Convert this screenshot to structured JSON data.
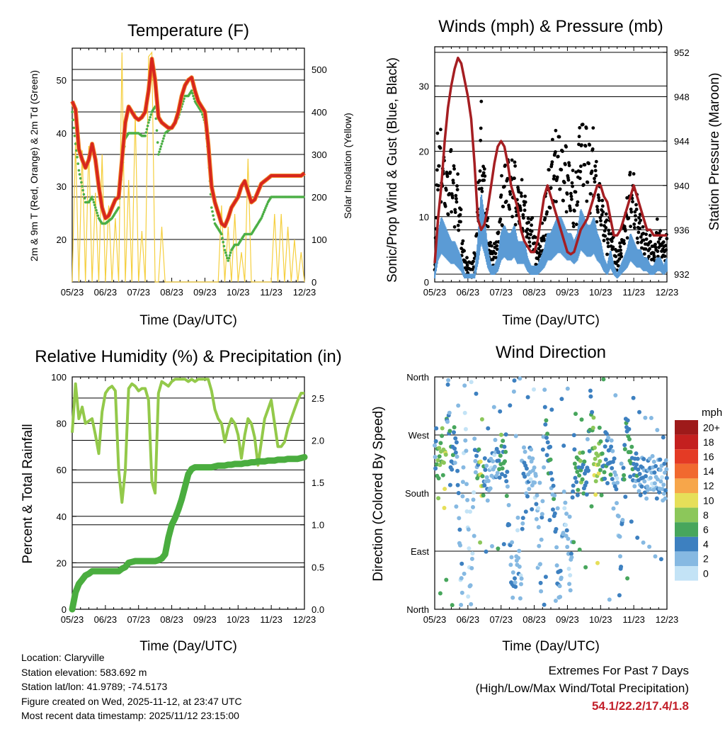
{
  "colors": {
    "temp": "#d7261e",
    "temp9": "#f08a2a",
    "dew": "#4caf46",
    "solar": "#f5cf3f",
    "gust": "#000000",
    "wind": "#5b9bd5",
    "pressure": "#a51e22",
    "rh": "#93c94a",
    "precip": "#4aad3f",
    "grid": "#000000",
    "extremes": "#c21f2a"
  },
  "x_ticks": [
    "05/23",
    "06/23",
    "07/23",
    "08/23",
    "09/23",
    "10/23",
    "11/23",
    "12/23"
  ],
  "legend": {
    "title": "mph",
    "labels": [
      "20+",
      "18",
      "16",
      "14",
      "12",
      "10",
      "8",
      "6",
      "4",
      "2",
      "0"
    ],
    "colors": [
      "#9e1a1a",
      "#c4201f",
      "#e43b25",
      "#f1692f",
      "#f7a64a",
      "#e6df59",
      "#8cc75a",
      "#47a65c",
      "#3d80c0",
      "#86b9e2",
      "#c3e3f6"
    ]
  },
  "info": {
    "location": "Location: Claryville",
    "elevation": "Station elevation: 583.692 m",
    "latlon": "Station lat/lon: 41.9789; -74.5173",
    "created": "Figure created on Wed, 2025-11-12, at 23:47 UTC",
    "recent": "Most recent data timestamp: 2025/11/12 23:15:00"
  },
  "extremes": {
    "title": "Extremes For Past 7 Days",
    "subtitle": "(High/Low/Max Wind/Total Precipitation)",
    "values": "54.1/22.2/17.4/1.8"
  },
  "chart_data": [
    {
      "type": "line",
      "title": "Temperature (F)",
      "xlabel": "Time (Day/UTC)",
      "ylabel": "2m & 9m T (Red, Orange) & 2m Td (Green)",
      "y2label": "Solar Insolation (Yellow)",
      "ylim": [
        12,
        56
      ],
      "yticks": [
        20,
        30,
        40,
        50
      ],
      "y2lim": [
        0,
        550
      ],
      "y2ticks": [
        0,
        100,
        200,
        300,
        400,
        500
      ],
      "x": [
        0,
        0.1,
        0.2,
        0.3,
        0.4,
        0.5,
        0.6,
        0.7,
        0.8,
        0.9,
        1,
        1.1,
        1.2,
        1.3,
        1.4,
        1.5,
        1.6,
        1.7,
        1.8,
        1.9,
        2,
        2.1,
        2.2,
        2.3,
        2.4,
        2.5,
        2.6,
        2.7,
        2.8,
        2.9,
        3,
        3.1,
        3.2,
        3.3,
        3.4,
        3.5,
        3.6,
        3.7,
        3.8,
        3.9,
        4,
        4.1,
        4.2,
        4.3,
        4.4,
        4.5,
        4.6,
        4.7,
        4.8,
        4.9,
        5,
        5.1,
        5.2,
        5.3,
        5.4,
        5.5,
        5.6,
        5.7,
        5.8,
        5.9,
        6,
        6.1,
        6.2,
        6.3,
        6.4,
        6.5,
        6.6,
        6.7,
        6.8,
        6.9,
        7
      ],
      "series": [
        {
          "name": "2m T",
          "values": [
            46,
            44.5,
            37,
            35,
            33.5,
            35,
            38,
            35,
            30,
            26,
            24,
            24.5,
            26,
            27.5,
            28,
            35,
            42,
            45,
            44,
            43,
            42.5,
            43,
            44,
            48,
            54,
            50,
            43,
            42,
            41.5,
            41,
            41,
            42,
            44,
            47,
            49,
            50,
            50.5,
            48,
            46,
            45,
            44,
            38,
            30,
            27,
            25,
            23,
            22.5,
            24,
            26,
            27,
            28,
            30,
            31,
            29,
            27,
            27.5,
            29,
            30.5,
            31,
            31.5,
            32,
            32,
            32,
            32,
            32,
            32,
            32,
            32,
            32,
            32,
            32.5
          ]
        },
        {
          "name": "2m Td",
          "values": [
            44,
            38,
            33,
            30,
            27,
            27,
            28,
            26,
            24,
            23,
            23,
            23.5,
            24,
            25,
            26,
            33,
            39,
            40,
            40,
            40,
            40,
            39.5,
            39.5,
            42,
            44,
            45,
            36,
            38,
            40,
            40.5,
            41,
            42,
            43,
            45,
            47,
            47,
            48,
            46,
            45,
            44,
            42,
            36,
            26,
            23,
            22,
            21,
            18,
            16,
            18,
            19,
            19,
            20,
            21,
            21,
            21,
            22,
            23,
            24,
            25.5,
            27,
            28,
            28,
            28,
            28,
            28,
            28,
            28,
            28,
            28,
            28,
            28
          ]
        },
        {
          "name": "Solar",
          "values": [
            0,
            330,
            0,
            310,
            0,
            320,
            0,
            210,
            0,
            300,
            0,
            180,
            0,
            150,
            0,
            540,
            0,
            240,
            0,
            400,
            0,
            120,
            0,
            530,
            540,
            0,
            0,
            130,
            0,
            0,
            0,
            0,
            0,
            0,
            0,
            0,
            0,
            0,
            0,
            0,
            0,
            0,
            0,
            0,
            0,
            180,
            0,
            130,
            0,
            160,
            0,
            70,
            0,
            290,
            0,
            0,
            0,
            0,
            0,
            0,
            0,
            160,
            0,
            160,
            0,
            130,
            0,
            100,
            0,
            70,
            0
          ]
        }
      ]
    },
    {
      "type": "scatter",
      "title": "Winds (mph) & Pressure (mb)",
      "xlabel": "Time (Day/UTC)",
      "ylabel": "Sonic/Prop Wind & Gust (Blue, Black)",
      "y2label": "Station Pressure (Maroon)",
      "ylim": [
        0,
        36
      ],
      "yticks": [
        0,
        10,
        20,
        30
      ],
      "y2lim": [
        931.3,
        952.5
      ],
      "y2ticks": [
        932,
        936,
        940,
        944,
        948,
        952
      ],
      "x": [
        0,
        0.1,
        0.2,
        0.3,
        0.4,
        0.5,
        0.6,
        0.7,
        0.8,
        0.9,
        1,
        1.1,
        1.2,
        1.3,
        1.4,
        1.5,
        1.6,
        1.7,
        1.8,
        1.9,
        2,
        2.1,
        2.2,
        2.3,
        2.4,
        2.5,
        2.6,
        2.7,
        2.8,
        2.9,
        3,
        3.1,
        3.2,
        3.3,
        3.4,
        3.5,
        3.6,
        3.7,
        3.8,
        3.9,
        4,
        4.1,
        4.2,
        4.3,
        4.4,
        4.5,
        4.6,
        4.7,
        4.8,
        4.9,
        5,
        5.1,
        5.2,
        5.3,
        5.4,
        5.5,
        5.6,
        5.7,
        5.8,
        5.9,
        6,
        6.1,
        6.2,
        6.3,
        6.4,
        6.5,
        6.6,
        6.7,
        6.8,
        6.9,
        7
      ],
      "series": [
        {
          "name": "Gust",
          "values": [
            2,
            20,
            18,
            15,
            14,
            16,
            14,
            12,
            8,
            3,
            2,
            2,
            3,
            10,
            22,
            14,
            8,
            4,
            4,
            6,
            12,
            14,
            16,
            14,
            15,
            12,
            12,
            11,
            8,
            8,
            6,
            4,
            5,
            8,
            14,
            15,
            18,
            19,
            18,
            17,
            16,
            14,
            12,
            14,
            22,
            20,
            18,
            17,
            18,
            13,
            12,
            9,
            7,
            8,
            4,
            3,
            5,
            8,
            10,
            14,
            12,
            10,
            8,
            6,
            6,
            5,
            4,
            7,
            6,
            5,
            6
          ]
        },
        {
          "name": "Wind",
          "values": [
            1,
            6,
            8,
            7,
            6,
            5,
            5,
            4,
            3,
            1,
            1,
            1,
            1,
            5,
            11,
            8,
            4,
            2,
            2,
            3,
            6,
            7,
            6,
            6,
            7,
            5,
            5,
            5,
            3,
            2,
            2,
            2,
            3,
            4,
            6,
            6,
            7,
            8,
            8,
            7,
            6,
            6,
            5,
            6,
            9,
            8,
            7,
            7,
            8,
            6,
            5,
            3,
            2,
            4,
            2,
            1,
            2,
            3,
            4,
            6,
            5,
            4,
            4,
            3,
            3,
            2,
            2,
            3,
            3,
            2,
            3
          ]
        },
        {
          "name": "Pressure",
          "values": [
            933,
            937,
            940,
            944,
            947,
            949,
            950.5,
            951.5,
            951,
            949.5,
            948,
            946,
            942,
            937,
            936,
            936.5,
            938,
            940,
            942,
            943.5,
            944,
            943.5,
            942,
            940,
            939,
            938,
            936,
            935,
            934.5,
            934,
            934,
            935,
            937,
            939,
            940,
            939,
            938,
            937,
            936,
            935,
            934,
            933.8,
            934,
            935,
            936,
            936.5,
            937,
            938,
            939,
            940,
            940,
            939,
            938.5,
            937,
            935.5,
            935.5,
            936,
            937,
            938,
            939,
            940,
            939,
            938,
            937,
            936,
            936,
            935.5,
            935.5,
            935.5,
            935.5,
            935.5
          ]
        }
      ]
    },
    {
      "type": "line",
      "title": "Relative Humidity (%) & Precipitation (in)",
      "xlabel": "Time (Day/UTC)",
      "ylabel": "Percent & Total Rainfall",
      "y2label": "",
      "ylim": [
        0,
        100
      ],
      "yticks": [
        0,
        20,
        40,
        60,
        80,
        100
      ],
      "y2lim": [
        0,
        2.75
      ],
      "y2ticks": [
        0.0,
        0.5,
        1.0,
        1.5,
        2.0,
        2.5
      ],
      "x": [
        0,
        0.1,
        0.2,
        0.3,
        0.4,
        0.5,
        0.6,
        0.7,
        0.8,
        0.9,
        1,
        1.1,
        1.2,
        1.3,
        1.4,
        1.5,
        1.6,
        1.7,
        1.8,
        1.9,
        2,
        2.1,
        2.2,
        2.3,
        2.4,
        2.5,
        2.6,
        2.7,
        2.8,
        2.9,
        3,
        3.1,
        3.2,
        3.3,
        3.4,
        3.5,
        3.6,
        3.7,
        3.8,
        3.9,
        4,
        4.1,
        4.2,
        4.3,
        4.4,
        4.5,
        4.6,
        4.7,
        4.8,
        4.9,
        5,
        5.1,
        5.2,
        5.3,
        5.4,
        5.5,
        5.6,
        5.7,
        5.8,
        5.9,
        6,
        6.1,
        6.2,
        6.3,
        6.4,
        6.5,
        6.6,
        6.7,
        6.8,
        6.9,
        7
      ],
      "series": [
        {
          "name": "RH",
          "values": [
            76,
            97,
            82,
            87,
            80,
            81,
            82,
            75,
            67,
            85,
            93,
            95,
            96,
            94,
            60,
            46,
            60,
            95,
            97,
            96,
            94,
            95,
            95,
            90,
            55,
            50,
            93,
            98,
            97,
            96,
            98,
            99,
            99,
            99,
            99,
            98,
            99,
            98,
            99,
            99,
            99,
            99,
            94,
            86,
            82,
            80,
            72,
            78,
            82,
            80,
            75,
            65,
            75,
            82,
            80,
            74,
            62,
            72,
            82,
            86,
            90,
            80,
            70,
            70,
            72,
            78,
            82,
            86,
            90,
            93,
            93
          ]
        },
        {
          "name": "Precip",
          "values": [
            0,
            0.2,
            0.3,
            0.35,
            0.4,
            0.42,
            0.45,
            0.45,
            0.45,
            0.45,
            0.45,
            0.45,
            0.45,
            0.45,
            0.45,
            0.48,
            0.5,
            0.55,
            0.56,
            0.57,
            0.57,
            0.57,
            0.57,
            0.57,
            0.57,
            0.57,
            0.58,
            0.6,
            0.65,
            0.85,
            1.0,
            1.08,
            1.18,
            1.3,
            1.45,
            1.6,
            1.66,
            1.68,
            1.68,
            1.68,
            1.68,
            1.68,
            1.68,
            1.69,
            1.7,
            1.7,
            1.7,
            1.71,
            1.71,
            1.72,
            1.72,
            1.72,
            1.73,
            1.73,
            1.74,
            1.74,
            1.75,
            1.75,
            1.75,
            1.76,
            1.76,
            1.76,
            1.77,
            1.77,
            1.77,
            1.78,
            1.78,
            1.78,
            1.78,
            1.79,
            1.8
          ]
        }
      ]
    },
    {
      "type": "scatter",
      "title": "Wind Direction",
      "xlabel": "Time (Day/UTC)",
      "ylabel": "Direction (Colored By Speed)",
      "ylim": [
        0,
        360
      ],
      "ytick_labels": [
        "North",
        "East",
        "South",
        "West",
        "North"
      ],
      "ytick_values": [
        0,
        90,
        180,
        270,
        360
      ],
      "x": [
        0,
        0.1,
        0.2,
        0.3,
        0.4,
        0.5,
        0.6,
        0.7,
        0.8,
        0.9,
        1,
        1.1,
        1.2,
        1.3,
        1.4,
        1.5,
        1.6,
        1.7,
        1.8,
        1.9,
        2,
        2.1,
        2.2,
        2.3,
        2.4,
        2.5,
        2.6,
        2.7,
        2.8,
        2.9,
        3,
        3.1,
        3.2,
        3.3,
        3.4,
        3.5,
        3.6,
        3.7,
        3.8,
        3.9,
        4,
        4.1,
        4.2,
        4.3,
        4.4,
        4.5,
        4.6,
        4.7,
        4.8,
        4.9,
        5,
        5.1,
        5.2,
        5.3,
        5.4,
        5.5,
        5.6,
        5.7,
        5.8,
        5.9,
        6,
        6.1,
        6.2,
        6.3,
        6.4,
        6.5,
        6.6,
        6.7,
        6.8,
        6.9,
        7
      ],
      "series": [
        {
          "name": "Direction",
          "values": [
            240,
            225,
            250,
            215,
            330,
            230,
            260,
            210,
            20,
            340,
            120,
            10,
            240,
            230,
            200,
            210,
            195,
            210,
            240,
            220,
            245,
            235,
            180,
            60,
            20,
            100,
            30,
            235,
            190,
            230,
            210,
            150,
            40,
            340,
            250,
            220,
            160,
            60,
            30,
            180,
            100,
            40,
            250,
            200,
            230,
            210,
            190,
            330,
            230,
            220,
            240,
            210,
            260,
            230,
            225,
            180,
            60,
            220,
            300,
            230,
            220,
            210,
            205,
            210,
            200,
            215,
            205,
            200,
            210,
            195,
            215
          ]
        },
        {
          "name": "Speed",
          "values": [
            1,
            8,
            6,
            10,
            3,
            5,
            4,
            3,
            2,
            2,
            1,
            1,
            2,
            5,
            11,
            4,
            3,
            2,
            2,
            4,
            6,
            5,
            4,
            3,
            3,
            2,
            2,
            4,
            3,
            2,
            2,
            2,
            2,
            3,
            5,
            4,
            4,
            3,
            3,
            2,
            2,
            2,
            5,
            6,
            7,
            5,
            4,
            5,
            8,
            9,
            7,
            5,
            4,
            4,
            3,
            2,
            3,
            5,
            5,
            6,
            4,
            4,
            4,
            3,
            3,
            2,
            2,
            3,
            3,
            2,
            3
          ]
        }
      ]
    }
  ]
}
